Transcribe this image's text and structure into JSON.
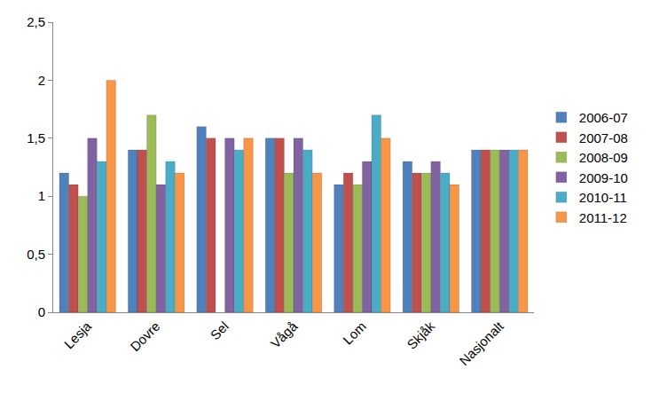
{
  "chart_data": {
    "type": "bar",
    "categories": [
      "Lesja",
      "Dovre",
      "Sel",
      "Vågå",
      "Lom",
      "Skjåk",
      "Nasjonalt"
    ],
    "series": [
      {
        "name": "2006-07",
        "color": "#4f81bd",
        "values": [
          1.2,
          1.4,
          1.6,
          1.5,
          1.1,
          1.3,
          1.4
        ]
      },
      {
        "name": "2007-08",
        "color": "#c0504d",
        "values": [
          1.1,
          1.4,
          1.5,
          1.5,
          1.2,
          1.2,
          1.4
        ]
      },
      {
        "name": "2008-09",
        "color": "#9bbb59",
        "values": [
          1.0,
          1.7,
          null,
          1.2,
          1.1,
          1.2,
          1.4
        ]
      },
      {
        "name": "2009-10",
        "color": "#8064a2",
        "values": [
          1.5,
          1.1,
          1.5,
          1.5,
          1.3,
          1.3,
          1.4
        ]
      },
      {
        "name": "2010-11",
        "color": "#4bacc6",
        "values": [
          1.3,
          1.3,
          1.4,
          1.4,
          1.7,
          1.2,
          1.4
        ]
      },
      {
        "name": "2011-12",
        "color": "#f79646",
        "values": [
          2.0,
          1.2,
          1.5,
          1.2,
          1.5,
          1.1,
          1.4
        ]
      }
    ],
    "ylim": [
      0,
      2.5
    ],
    "yticks": [
      0,
      {
        "value": 0.5,
        "label": "0,5"
      },
      1,
      {
        "value": 1.5,
        "label": "1,5"
      },
      2,
      {
        "value": 2.5,
        "label": "2,5"
      }
    ],
    "grid": false,
    "legend": "right"
  }
}
